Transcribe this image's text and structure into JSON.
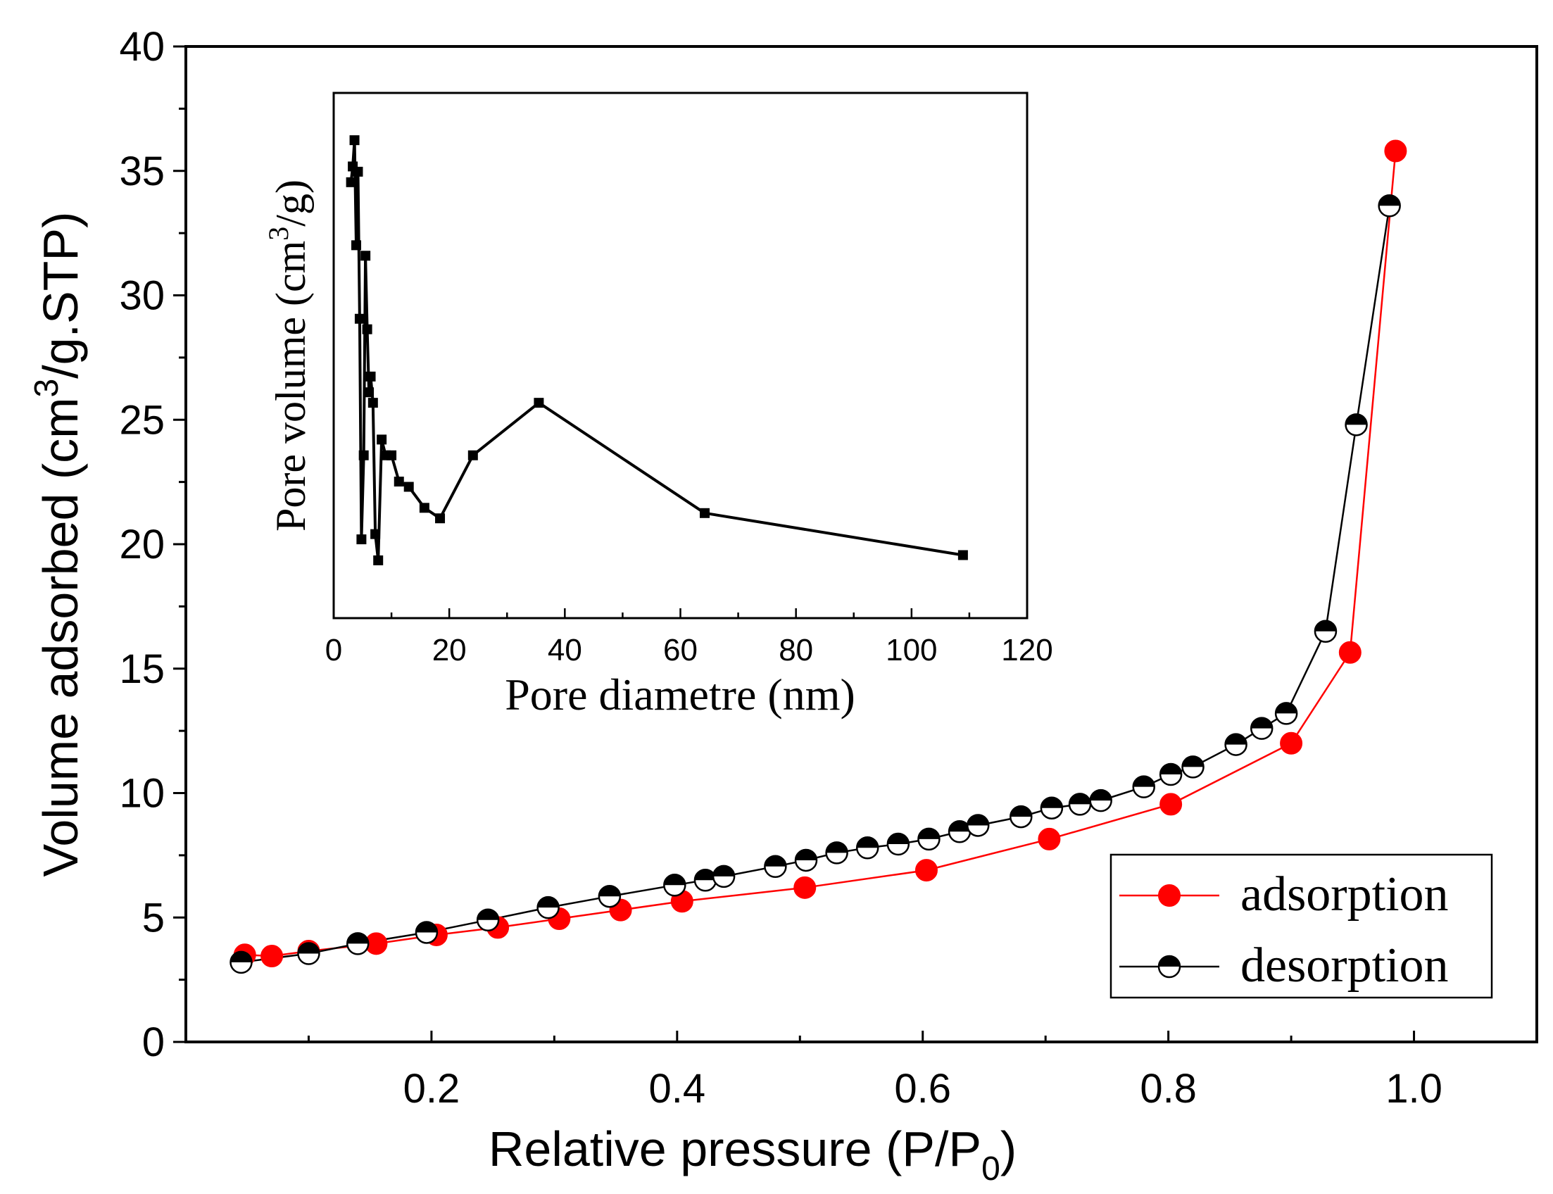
{
  "chart_data": [
    {
      "type": "scatter",
      "xlabel": "Relative pressure (P/P",
      "xlabel_sub": "0",
      "xlabel_end": ")",
      "ylabel": "Volume adsorbed (cm",
      "ylabel_sup": "3",
      "ylabel_end": "/g.STP)",
      "xlim": [
        0.0,
        1.1
      ],
      "ylim": [
        0,
        40
      ],
      "xticks": [
        0.2,
        0.4,
        0.6,
        0.8,
        1.0
      ],
      "xtick_labels": [
        "0.2",
        "0.4",
        "0.6",
        "0.8",
        "1.0"
      ],
      "yticks": [
        0,
        5,
        10,
        15,
        20,
        25,
        30,
        35,
        40
      ],
      "ytick_labels": [
        "0",
        "5",
        "10",
        "15",
        "20",
        "25",
        "30",
        "35",
        "40"
      ],
      "grid": false,
      "legend_position": "bottom-right",
      "series": [
        {
          "name": "adsorption",
          "color": "#ff0000",
          "marker": "filled-circle",
          "x": [
            0.048,
            0.07,
            0.1,
            0.155,
            0.204,
            0.254,
            0.304,
            0.354,
            0.404,
            0.504,
            0.603,
            0.703,
            0.802,
            0.9,
            0.948,
            0.985
          ],
          "y": [
            3.5,
            3.45,
            3.65,
            3.95,
            4.3,
            4.6,
            4.95,
            5.3,
            5.65,
            6.2,
            6.9,
            8.15,
            9.55,
            12.0,
            15.65,
            35.8
          ]
        },
        {
          "name": "desorption",
          "color": "#000000",
          "marker": "half-filled-circle",
          "x": [
            0.045,
            0.1,
            0.14,
            0.196,
            0.246,
            0.295,
            0.345,
            0.398,
            0.423,
            0.438,
            0.48,
            0.505,
            0.53,
            0.555,
            0.58,
            0.605,
            0.63,
            0.645,
            0.68,
            0.705,
            0.728,
            0.745,
            0.78,
            0.802,
            0.82,
            0.855,
            0.876,
            0.896,
            0.928,
            0.953,
            0.98
          ],
          "y": [
            3.2,
            3.55,
            3.95,
            4.4,
            4.9,
            5.4,
            5.85,
            6.3,
            6.5,
            6.65,
            7.05,
            7.3,
            7.6,
            7.8,
            7.95,
            8.15,
            8.45,
            8.7,
            9.05,
            9.4,
            9.55,
            9.7,
            10.25,
            10.75,
            11.05,
            11.95,
            12.6,
            13.2,
            16.5,
            24.8,
            33.6
          ]
        }
      ]
    },
    {
      "type": "line",
      "inset": true,
      "xlabel": "Pore diametre (nm)",
      "ylabel": "Pore volume (cm",
      "ylabel_sup": "3",
      "ylabel_end": "/g)",
      "xlim": [
        0,
        120
      ],
      "ylim": [
        0,
        1
      ],
      "xticks": [
        0,
        20,
        40,
        60,
        80,
        100,
        120
      ],
      "xtick_labels": [
        "0",
        "20",
        "40",
        "60",
        "80",
        "100",
        "120"
      ],
      "y_tick_labels_shown": false,
      "grid": false,
      "series": [
        {
          "name": "",
          "color": "#000000",
          "marker": "filled-square",
          "x": [
            3.0,
            3.3,
            3.6,
            3.9,
            4.2,
            4.5,
            4.8,
            5.2,
            5.5,
            5.8,
            6.1,
            6.4,
            6.8,
            7.2,
            7.7,
            8.3,
            9.0,
            10.0,
            11.3,
            13.0,
            15.7,
            18.4,
            24.1,
            35.5,
            64.2,
            108.9
          ],
          "y": [
            0.83,
            0.86,
            0.91,
            0.71,
            0.85,
            0.57,
            0.15,
            0.31,
            0.69,
            0.55,
            0.43,
            0.46,
            0.41,
            0.16,
            0.11,
            0.34,
            0.31,
            0.31,
            0.26,
            0.25,
            0.21,
            0.19,
            0.31,
            0.41,
            0.2,
            0.12
          ]
        }
      ]
    }
  ],
  "legend": {
    "items": [
      {
        "label": "adsorption"
      },
      {
        "label": "desorption"
      }
    ]
  }
}
